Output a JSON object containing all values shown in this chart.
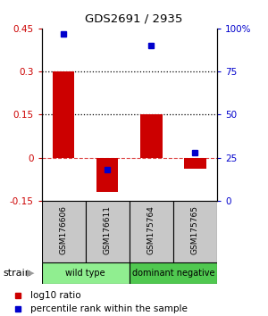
{
  "title": "GDS2691 / 2935",
  "samples": [
    "GSM176606",
    "GSM176611",
    "GSM175764",
    "GSM175765"
  ],
  "log10_ratio": [
    0.3,
    -0.12,
    0.15,
    -0.04
  ],
  "percentile_rank": [
    97,
    18,
    90,
    28
  ],
  "groups": [
    {
      "label": "wild type",
      "samples": [
        0,
        1
      ],
      "color": "#90ee90"
    },
    {
      "label": "dominant negative",
      "samples": [
        2,
        3
      ],
      "color": "#50c850"
    }
  ],
  "bar_color": "#cc0000",
  "dot_color": "#0000cc",
  "ylim_left": [
    -0.15,
    0.45
  ],
  "ylim_right": [
    0,
    100
  ],
  "yticks_left": [
    -0.15,
    0.0,
    0.15,
    0.3,
    0.45
  ],
  "yticks_left_labels": [
    "-0.15",
    "0",
    "0.15",
    "0.3",
    "0.45"
  ],
  "yticks_right": [
    0,
    25,
    50,
    75,
    100
  ],
  "yticks_right_labels": [
    "0",
    "25",
    "50",
    "75",
    "100%"
  ],
  "hlines": [
    0.15,
    0.3
  ],
  "background_color": "#ffffff",
  "strain_label": "strain",
  "legend_ratio_label": "log10 ratio",
  "legend_pct_label": "percentile rank within the sample",
  "bar_width": 0.5,
  "gray_color": "#c8c8c8"
}
